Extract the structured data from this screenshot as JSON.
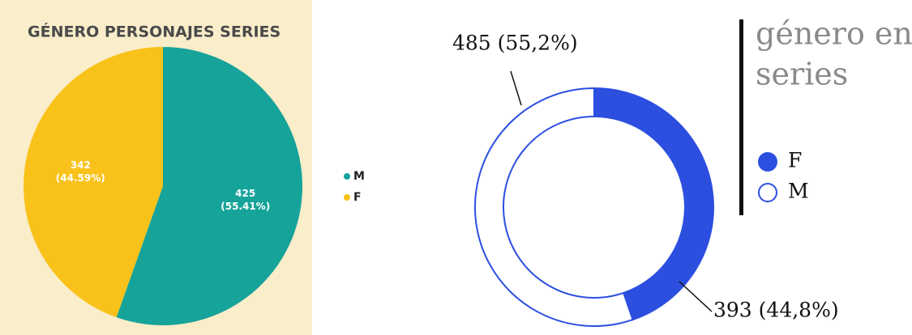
{
  "chart_data": [
    {
      "type": "pie",
      "title": "GÉNERO PERSONAJES SERIES",
      "categories": [
        "M",
        "F"
      ],
      "values": [
        425,
        342
      ],
      "value_labels": [
        [
          "425",
          "(55.41%)"
        ],
        [
          "342",
          "(44.59%)"
        ]
      ],
      "colors": [
        "#16a39a",
        "#f9c21a"
      ]
    },
    {
      "type": "donut",
      "title": [
        "género en",
        "series"
      ],
      "categories": [
        "F",
        "M"
      ],
      "values": [
        393,
        485
      ],
      "value_labels": [
        "393 (44,8%)",
        "485 (55,2%)"
      ],
      "colors": [
        "#2c4fe0",
        "#ffffff"
      ]
    }
  ]
}
